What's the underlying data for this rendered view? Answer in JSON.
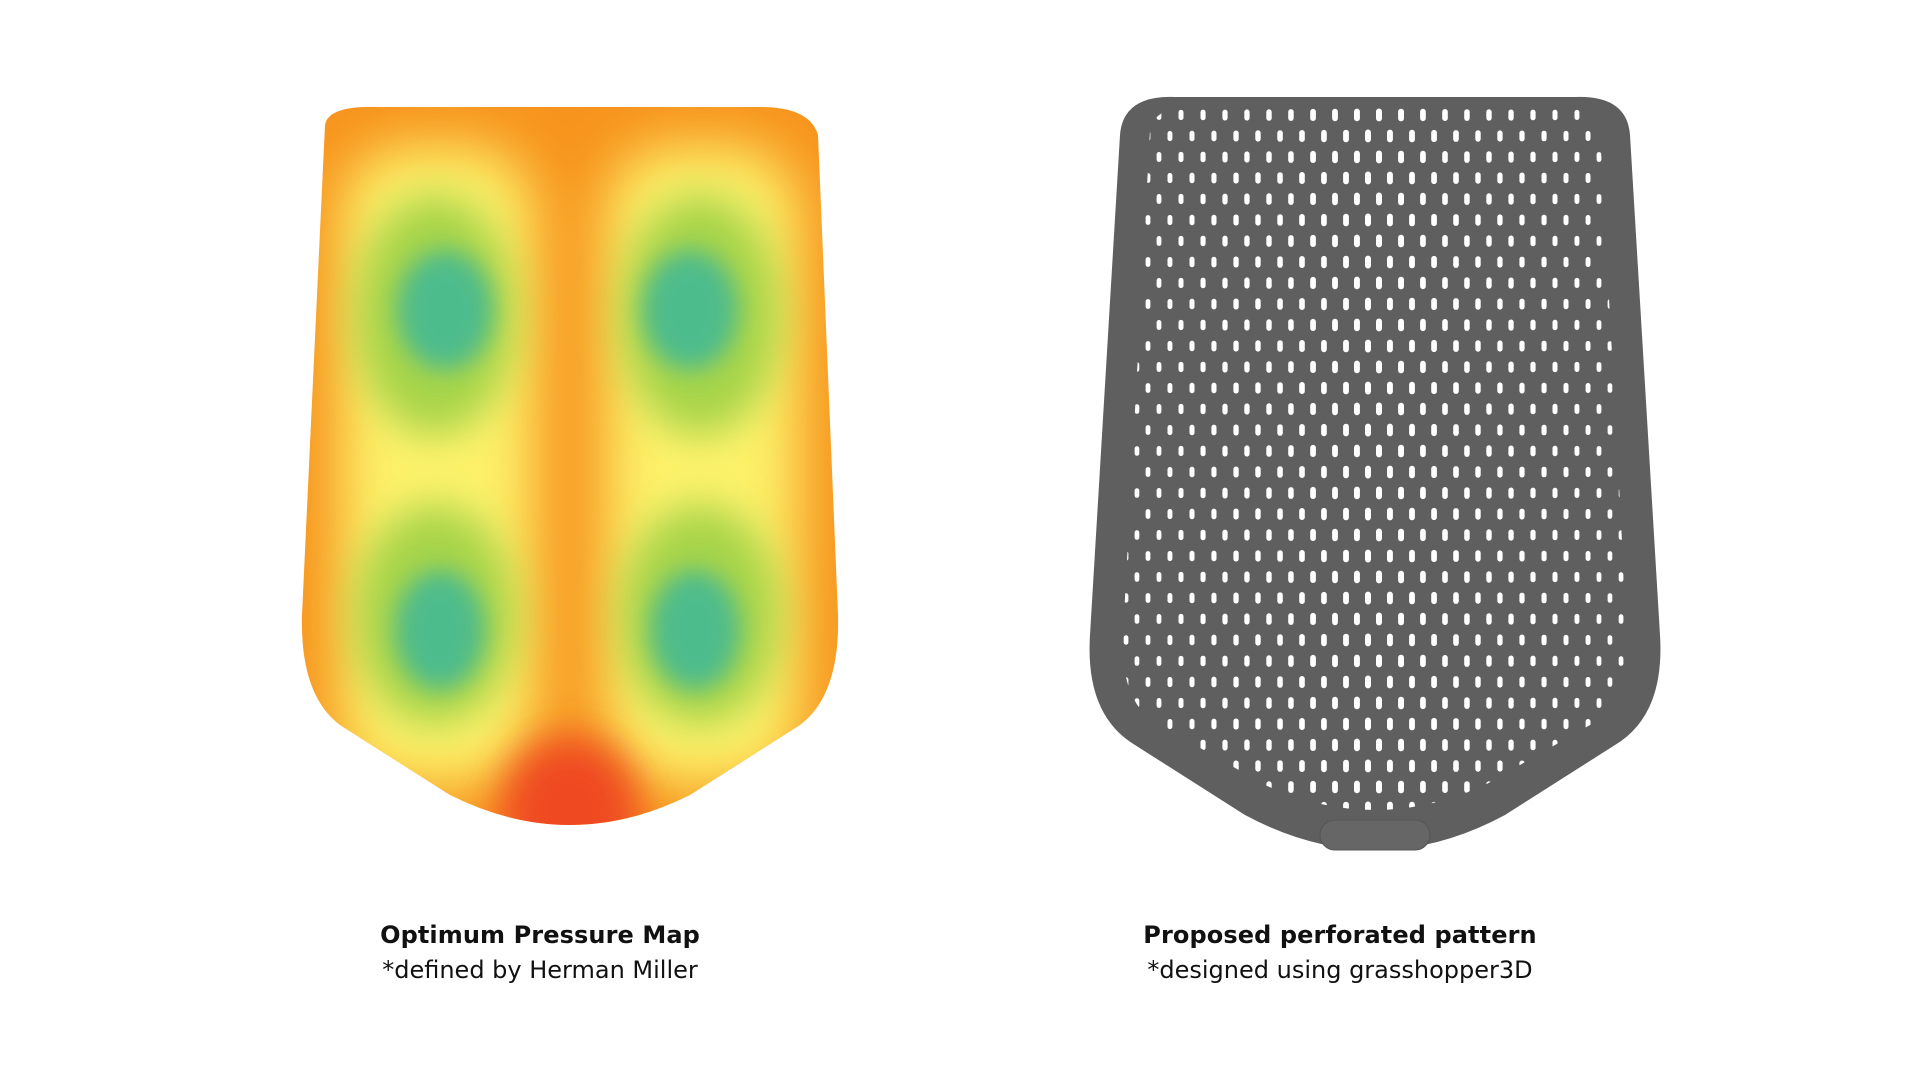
{
  "figures": [
    {
      "title": "Optimum Pressure Map",
      "subtitle": "*defined by Herman Miller",
      "colors": {
        "high": "#ef4a23",
        "mid_high": "#f7941d",
        "mid": "#fdf26a",
        "low_mid": "#a6d44a",
        "low": "#4ebc8c"
      }
    },
    {
      "title": "Proposed perforated pattern",
      "subtitle": "*designed using grasshopper3D",
      "colors": {
        "shell": "#5f5f5f",
        "perforation": "#ffffff"
      }
    }
  ]
}
